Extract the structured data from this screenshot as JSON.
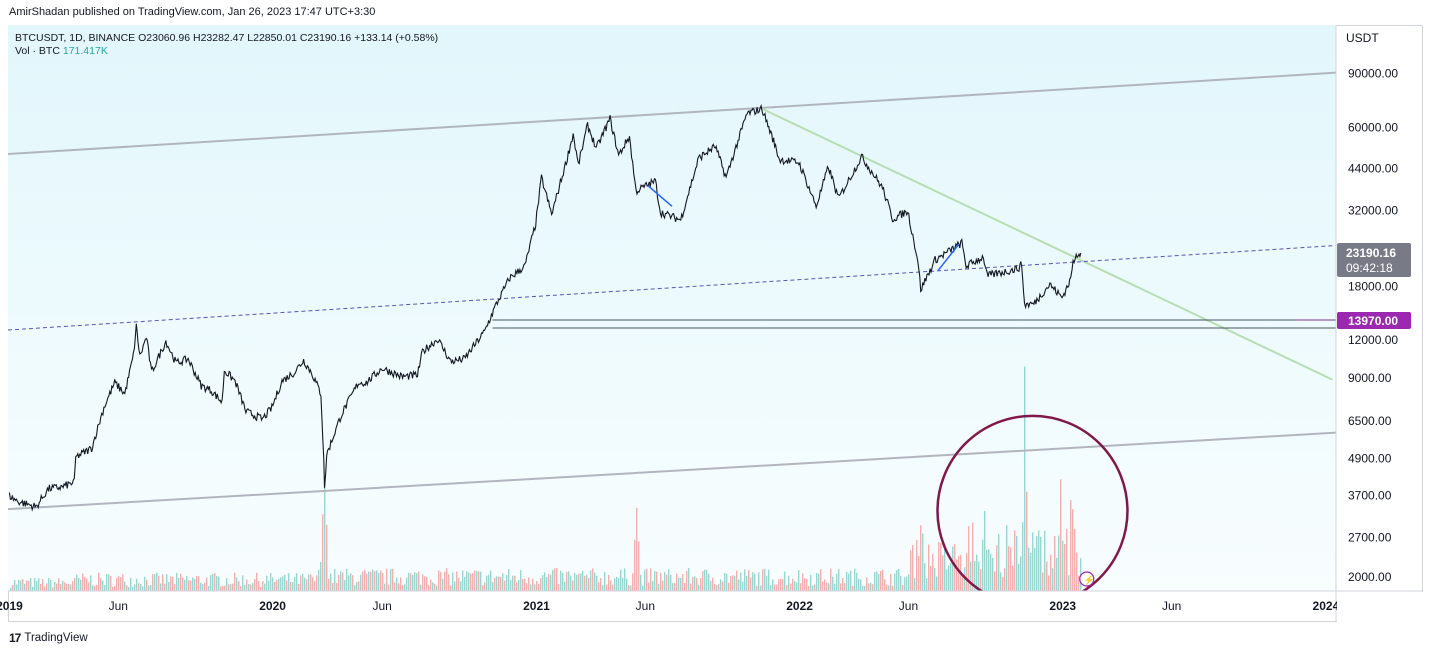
{
  "header": {
    "published": "AmirShadan published on TradingView.com, Jan 26, 2023 17:47 UTC+3:30"
  },
  "legend": {
    "line1": "BTCUSDT, 1D, BINANCE  O23060.96  H23282.47  L22850.01  C23190.16  +133.14 (+0.58%)",
    "vol_label": "Vol · BTC",
    "vol_value": "171.417K"
  },
  "footer": {
    "logo_mark": "17",
    "logo_text": "TradingView"
  },
  "colors": {
    "price_line": "#131722",
    "channel": "#b2b5be",
    "downtrend": "#b7deb0",
    "dashed": "#5b52b6",
    "support": "#45575f",
    "circle": "#80184a",
    "vol_up": "#26a69a",
    "vol_down": "#ef5350",
    "label_current_bg": "#787b86",
    "label_support_bg": "#9c27b0",
    "accent_blue": "#2962ff"
  },
  "chart_data": {
    "type": "line",
    "title": "BTCUSDT, 1D, BINANCE",
    "scale": "log",
    "y_unit_label": "USDT",
    "ylim": [
      1800,
      130000
    ],
    "y_ticks": [
      "90000.00",
      "60000.00",
      "44000.00",
      "32000.00",
      "18000.00",
      "12000.00",
      "9000.00",
      "6500.00",
      "4900.00",
      "3700.00",
      "2700.00",
      "2000.00"
    ],
    "y_tick_values": [
      90000,
      60000,
      44000,
      32000,
      18000,
      12000,
      9000,
      6500,
      4900,
      3700,
      2700,
      2000
    ],
    "x_range": [
      "2018-12-30",
      "2024-01-15"
    ],
    "x_ticks": [
      {
        "label": "2019",
        "date": "2019-01-01"
      },
      {
        "label": "Jun",
        "date": "2019-06-01"
      },
      {
        "label": "2020",
        "date": "2020-01-01"
      },
      {
        "label": "Jun",
        "date": "2020-06-01"
      },
      {
        "label": "2021",
        "date": "2021-01-01"
      },
      {
        "label": "Jun",
        "date": "2021-06-01"
      },
      {
        "label": "2022",
        "date": "2022-01-01"
      },
      {
        "label": "Jun",
        "date": "2022-06-01"
      },
      {
        "label": "2023",
        "date": "2023-01-01"
      },
      {
        "label": "Jun",
        "date": "2023-06-01"
      },
      {
        "label": "2024",
        "date": "2024-01-01"
      }
    ],
    "series": [
      {
        "name": "BTCUSDT",
        "points": [
          [
            "2019-01-01",
            3700
          ],
          [
            "2019-01-12",
            3550
          ],
          [
            "2019-02-07",
            3400
          ],
          [
            "2019-02-24",
            3900
          ],
          [
            "2019-03-15",
            3950
          ],
          [
            "2019-04-01",
            4100
          ],
          [
            "2019-04-03",
            4950
          ],
          [
            "2019-04-25",
            5300
          ],
          [
            "2019-05-12",
            7200
          ],
          [
            "2019-05-27",
            8700
          ],
          [
            "2019-06-10",
            8000
          ],
          [
            "2019-06-22",
            10700
          ],
          [
            "2019-06-26",
            13300
          ],
          [
            "2019-07-01",
            10600
          ],
          [
            "2019-07-10",
            12300
          ],
          [
            "2019-07-17",
            9400
          ],
          [
            "2019-08-06",
            11900
          ],
          [
            "2019-08-20",
            10100
          ],
          [
            "2019-09-06",
            10400
          ],
          [
            "2019-09-24",
            8500
          ],
          [
            "2019-10-08",
            8200
          ],
          [
            "2019-10-23",
            7500
          ],
          [
            "2019-10-26",
            9550
          ],
          [
            "2019-11-10",
            8800
          ],
          [
            "2019-11-25",
            7000
          ],
          [
            "2019-12-18",
            6600
          ],
          [
            "2019-12-31",
            7200
          ],
          [
            "2020-01-14",
            8800
          ],
          [
            "2020-01-31",
            9400
          ],
          [
            "2020-02-13",
            10300
          ],
          [
            "2020-02-25",
            9300
          ],
          [
            "2020-03-08",
            8000
          ],
          [
            "2020-03-12",
            4900
          ],
          [
            "2020-03-13",
            3850
          ],
          [
            "2020-03-16",
            5050
          ],
          [
            "2020-04-05",
            6800
          ],
          [
            "2020-04-29",
            8700
          ],
          [
            "2020-05-10",
            8700
          ],
          [
            "2020-06-01",
            9700
          ],
          [
            "2020-06-28",
            9100
          ],
          [
            "2020-07-20",
            9200
          ],
          [
            "2020-07-27",
            11000
          ],
          [
            "2020-08-17",
            12100
          ],
          [
            "2020-09-04",
            10200
          ],
          [
            "2020-09-23",
            10400
          ],
          [
            "2020-10-21",
            12800
          ],
          [
            "2020-11-05",
            15500
          ],
          [
            "2020-11-25",
            19200
          ],
          [
            "2020-12-16",
            21000
          ],
          [
            "2020-12-31",
            29000
          ],
          [
            "2021-01-08",
            41000
          ],
          [
            "2021-01-22",
            31000
          ],
          [
            "2021-02-10",
            45000
          ],
          [
            "2021-02-21",
            57000
          ],
          [
            "2021-02-28",
            45000
          ],
          [
            "2021-03-13",
            61000
          ],
          [
            "2021-03-25",
            51000
          ],
          [
            "2021-04-13",
            64000
          ],
          [
            "2021-04-25",
            48500
          ],
          [
            "2021-05-10",
            56000
          ],
          [
            "2021-05-19",
            37000
          ],
          [
            "2021-06-15",
            40000
          ],
          [
            "2021-06-22",
            31500
          ],
          [
            "2021-07-20",
            29800
          ],
          [
            "2021-08-14",
            47500
          ],
          [
            "2021-09-06",
            52000
          ],
          [
            "2021-09-21",
            41000
          ],
          [
            "2021-10-20",
            66500
          ],
          [
            "2021-11-10",
            69000
          ],
          [
            "2021-11-26",
            54000
          ],
          [
            "2021-12-04",
            47000
          ],
          [
            "2021-12-31",
            46000
          ],
          [
            "2022-01-24",
            33000
          ],
          [
            "2022-02-10",
            44500
          ],
          [
            "2022-02-24",
            35000
          ],
          [
            "2022-03-28",
            48000
          ],
          [
            "2022-04-26",
            38000
          ],
          [
            "2022-05-10",
            30000
          ],
          [
            "2022-05-31",
            31800
          ],
          [
            "2022-06-14",
            22000
          ],
          [
            "2022-06-18",
            17600
          ],
          [
            "2022-07-08",
            22000
          ],
          [
            "2022-08-14",
            25000
          ],
          [
            "2022-08-20",
            21000
          ],
          [
            "2022-09-13",
            22500
          ],
          [
            "2022-09-18",
            19500
          ],
          [
            "2022-10-31",
            20600
          ],
          [
            "2022-11-05",
            21300
          ],
          [
            "2022-11-09",
            15700
          ],
          [
            "2022-11-22",
            15800
          ],
          [
            "2022-12-14",
            18300
          ],
          [
            "2022-12-31",
            16550
          ],
          [
            "2023-01-12",
            19000
          ],
          [
            "2023-01-14",
            20900
          ],
          [
            "2023-01-21",
            23000
          ],
          [
            "2023-01-26",
            23190
          ]
        ]
      }
    ],
    "volume": {
      "label": "Vol · BTC",
      "last": "171.417K",
      "spikes": [
        {
          "date": "2020-03-12",
          "level": 0.85
        },
        {
          "date": "2021-05-19",
          "level": 0.6
        },
        {
          "date": "2022-06-18",
          "level": 0.55
        },
        {
          "date": "2022-11-09",
          "level": 1.0
        },
        {
          "date": "2023-01-14",
          "level": 0.6
        }
      ]
    },
    "current_price_label": "23190.16",
    "countdown_label": "09:42:18",
    "support_label": "13970.00",
    "support_value": 13970,
    "support_lower_value": 13150,
    "support_start": "2020-11-01",
    "trendlines": [
      {
        "kind": "upper-channel",
        "p1": [
          "2018-12-30",
          49000
        ],
        "p2": [
          "2024-01-10",
          90500
        ]
      },
      {
        "kind": "lower-channel",
        "p1": [
          "2019-01-06",
          3350
        ],
        "p2": [
          "2024-01-10",
          5950
        ]
      },
      {
        "kind": "downtrend",
        "p1": [
          "2021-11-10",
          69000
        ],
        "p2": [
          "2024-01-10",
          8900
        ]
      },
      {
        "kind": "dashed-rising",
        "p1": [
          "2018-12-30",
          12950
        ],
        "p2": [
          "2024-01-10",
          24500
        ]
      },
      {
        "kind": "blue-1",
        "p1": [
          "2021-06-05",
          38500
        ],
        "p2": [
          "2021-07-08",
          33000
        ]
      },
      {
        "kind": "blue-2",
        "p1": [
          "2022-07-12",
          20300
        ],
        "p2": [
          "2022-08-10",
          24800
        ]
      }
    ],
    "annotation_circle": {
      "center": [
        "2022-11-20",
        3300
      ],
      "note": "volume highlight"
    }
  }
}
